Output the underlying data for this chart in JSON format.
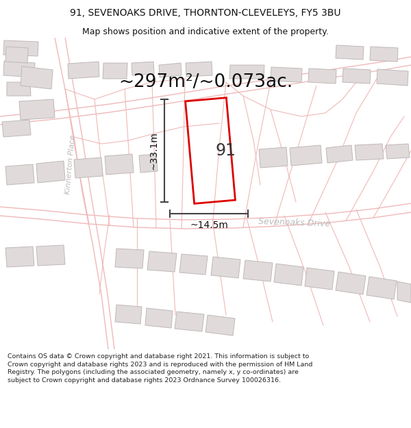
{
  "title_line1": "91, SEVENOAKS DRIVE, THORNTON-CLEVELEYS, FY5 3BU",
  "title_line2": "Map shows position and indicative extent of the property.",
  "area_text": "~297m²/~0.073ac.",
  "label_91": "91",
  "dim_vertical": "~33.1m",
  "dim_horizontal": "~14.5m",
  "street_label1": "Kinnerton Place",
  "street_label2": "Sevenoaks Drive",
  "footer": "Contains OS data © Crown copyright and database right 2021. This information is subject to Crown copyright and database rights 2023 and is reproduced with the permission of HM Land Registry. The polygons (including the associated geometry, namely x, y co-ordinates) are subject to Crown copyright and database rights 2023 Ordnance Survey 100026316.",
  "bg_color": "#ffffff",
  "map_bg": "#ffffff",
  "plot_stroke": "#dd0000",
  "road_color": "#f0b8b8",
  "building_fill": "#e0dada",
  "building_edge": "#c0b8b8",
  "dim_color": "#444444",
  "title_fs": 10,
  "area_fs": 19,
  "footer_fs": 6.8
}
